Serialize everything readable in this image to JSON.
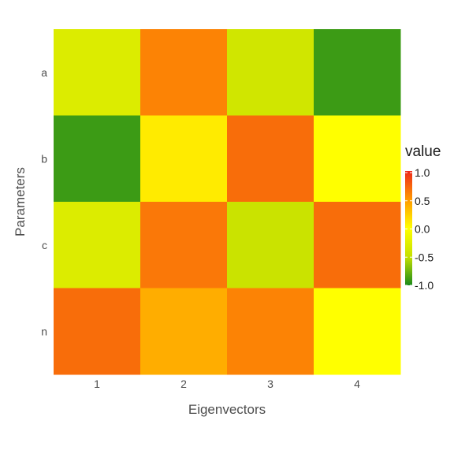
{
  "chart_data": {
    "type": "heatmap",
    "title": "",
    "xlabel": "Eigenvectors",
    "ylabel": "Parameters",
    "x_categories": [
      "1",
      "2",
      "3",
      "4"
    ],
    "y_categories": [
      "a",
      "b",
      "c",
      "n"
    ],
    "values": [
      [
        -0.3,
        0.6,
        -0.4,
        -0.9
      ],
      [
        -0.9,
        0.1,
        0.7,
        0.0
      ],
      [
        -0.3,
        0.65,
        -0.45,
        0.7
      ],
      [
        0.7,
        0.4,
        0.6,
        0.0
      ]
    ],
    "legend": {
      "title": "value",
      "ticks": [
        "1.0",
        "0.5",
        "0.0",
        "-0.5",
        "-1.0"
      ],
      "range": [
        -1.0,
        1.0
      ],
      "placement": "right"
    },
    "colors": {
      "low": "#1a8a1a",
      "mid_low": "#c4e000",
      "mid": "#ffff00",
      "mid_high": "#ff9900",
      "high": "#ee2a1a"
    }
  }
}
